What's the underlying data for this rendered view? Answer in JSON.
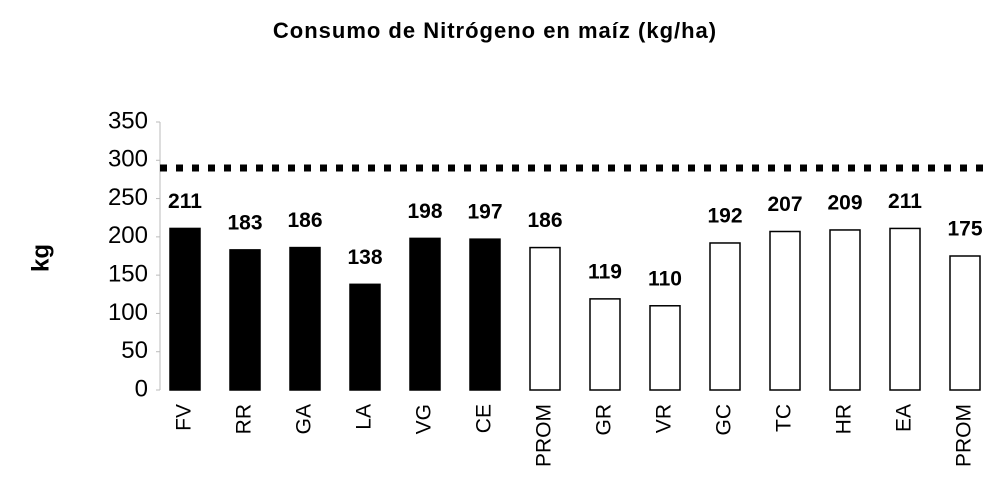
{
  "chart_data": {
    "type": "bar",
    "title": "Consumo de Nitrógeno en maíz (kg/ha)",
    "y_label": "kg",
    "categories": [
      "FV",
      "RR",
      "GA",
      "LA",
      "VG",
      "CE",
      "PROM",
      "GR",
      "VR",
      "GC",
      "TC",
      "HR",
      "EA",
      "PROM"
    ],
    "values": [
      211,
      183,
      186,
      138,
      198,
      197,
      186,
      119,
      110,
      192,
      207,
      209,
      211,
      175
    ],
    "colors": [
      "#000000",
      "#000000",
      "#000000",
      "#000000",
      "#000000",
      "#000000",
      "#ffffff",
      "#ffffff",
      "#ffffff",
      "#ffffff",
      "#ffffff",
      "#ffffff",
      "#ffffff",
      "#ffffff"
    ],
    "reference_line": 290,
    "ylim": [
      0,
      350
    ],
    "yticks": [
      0,
      50,
      100,
      150,
      200,
      250,
      300,
      350
    ]
  }
}
